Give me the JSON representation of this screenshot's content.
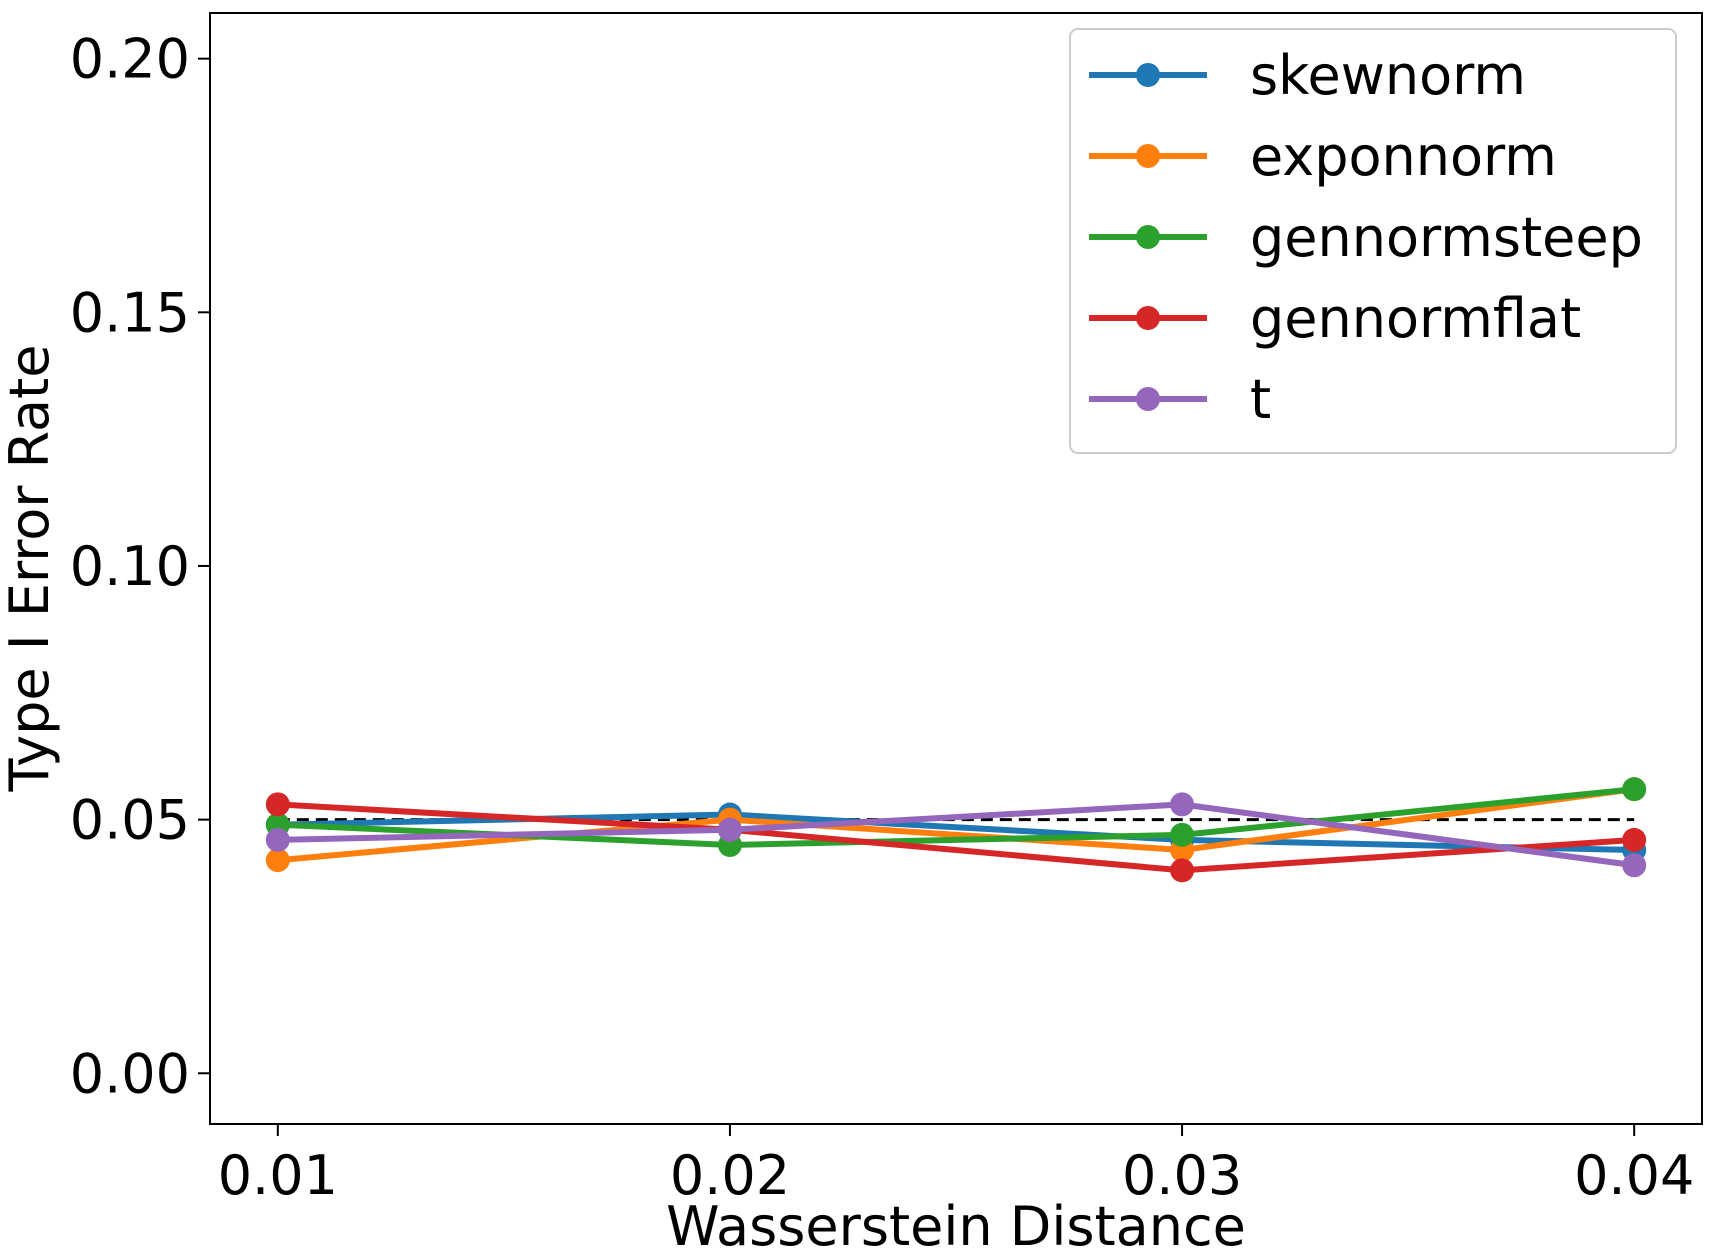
{
  "chart_data": {
    "type": "line",
    "title": "",
    "xlabel": "Wasserstein Distance",
    "ylabel": "Type I Error Rate",
    "x": [
      0.01,
      0.02,
      0.03,
      0.04
    ],
    "x_tick_labels": [
      "0.01",
      "0.02",
      "0.03",
      "0.04"
    ],
    "y_ticks": [
      0.0,
      0.05,
      0.1,
      0.15,
      0.2
    ],
    "y_tick_labels": [
      "0.00",
      "0.05",
      "0.10",
      "0.15",
      "0.20"
    ],
    "xlim": [
      0.0085,
      0.0415
    ],
    "ylim": [
      -0.01,
      0.209
    ],
    "grid": false,
    "legend_position": "top-right",
    "reference_line": {
      "y": 0.05,
      "style": "dashed",
      "color": "#000000"
    },
    "series": [
      {
        "name": "skewnorm",
        "color": "#1f77b4",
        "values": [
          0.049,
          0.051,
          0.046,
          0.044
        ]
      },
      {
        "name": "exponnorm",
        "color": "#ff7f0e",
        "values": [
          0.042,
          0.05,
          0.044,
          0.056
        ]
      },
      {
        "name": "gennormsteep",
        "color": "#2ca02c",
        "values": [
          0.049,
          0.045,
          0.047,
          0.056
        ]
      },
      {
        "name": "gennormflat",
        "color": "#d62728",
        "values": [
          0.053,
          0.048,
          0.04,
          0.046
        ]
      },
      {
        "name": "t",
        "color": "#9467bd",
        "values": [
          0.046,
          0.048,
          0.053,
          0.041
        ]
      }
    ]
  }
}
